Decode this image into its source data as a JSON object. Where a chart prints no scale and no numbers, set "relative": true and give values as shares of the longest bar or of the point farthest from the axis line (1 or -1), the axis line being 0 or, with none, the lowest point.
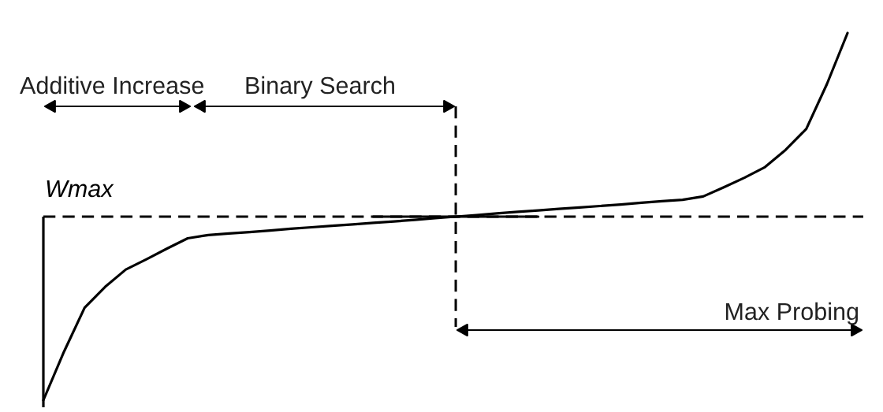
{
  "chart_data": {
    "type": "line",
    "relative": true,
    "line_style": "solid",
    "categories": [
      null,
      null,
      null,
      null,
      null,
      null,
      null,
      null,
      null,
      null,
      null,
      null,
      null,
      null,
      null,
      null,
      null,
      null,
      null,
      null,
      null,
      null,
      null,
      null,
      null,
      null,
      null,
      null,
      null,
      null,
      null,
      null,
      null,
      null,
      null,
      null,
      null,
      null,
      null,
      null
    ],
    "series": [
      {
        "color": "#000000",
        "values": [
          0,
          0.132,
          0.252,
          0.309,
          0.356,
          0.384,
          0.413,
          0.441,
          0.45,
          0.454,
          0.458,
          0.462,
          0.467,
          0.471,
          0.475,
          0.479,
          0.483,
          0.487,
          0.491,
          0.496,
          0.5,
          0.504,
          0.509,
          0.513,
          0.517,
          0.521,
          0.525,
          0.529,
          0.533,
          0.538,
          0.542,
          0.546,
          0.555,
          0.58,
          0.606,
          0.635,
          0.682,
          0.739,
          0.861,
          1.0
        ]
      },
      {
        "color": "#000000",
        "values": [
          null,
          null,
          null,
          null,
          null,
          null,
          null,
          null,
          null,
          null,
          null,
          null,
          null,
          null,
          null,
          null,
          0.5,
          0.5,
          0.5,
          0.5,
          0.5,
          0.5,
          0.5,
          0.5,
          0.5,
          null,
          null,
          null,
          null,
          null,
          null,
          null,
          null,
          null,
          null,
          null,
          null,
          null,
          null,
          null
        ]
      }
    ],
    "ref_lines": [
      {
        "axis": "y",
        "value": 0.5,
        "label": "Wmax",
        "color": "#000000",
        "line_style": "dashed"
      }
    ],
    "annotations": [
      "Additive Increase",
      "Binary Search",
      "Max Probing"
    ]
  }
}
